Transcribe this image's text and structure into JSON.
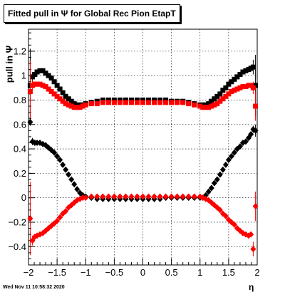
{
  "chart_data": {
    "type": "scatter",
    "title": "Fitted pull in  Ψ  for Global Rec Pion EtapT",
    "xlabel": "η",
    "ylabel": "pull in  Ψ",
    "timestamp": "Wed Nov 11 10:58:32 2020",
    "xlim": [
      -2,
      2
    ],
    "ylim": [
      -0.55,
      1.38
    ],
    "xticks": [
      -2,
      -1.5,
      -1,
      -0.5,
      0,
      0.5,
      1,
      1.5,
      2
    ],
    "xtick_labels": [
      "−2",
      "−1.5",
      "−1",
      "−0.5",
      "0",
      "0.5",
      "1",
      "1.5",
      "2"
    ],
    "yticks": [
      -0.4,
      -0.2,
      0,
      0.2,
      0.4,
      0.6,
      0.8,
      1,
      1.2
    ],
    "ytick_labels": [
      "−0.4",
      "−0.2",
      "0",
      "0.2",
      "0.4",
      "0.6",
      "0.8",
      "1",
      "1.2"
    ],
    "grid": true,
    "series": [
      {
        "marker": "square",
        "color": "#000000",
        "x": [
          -1.97,
          -1.93,
          -1.89,
          -1.85,
          -1.8,
          -1.75,
          -1.7,
          -1.65,
          -1.6,
          -1.55,
          -1.5,
          -1.45,
          -1.4,
          -1.35,
          -1.3,
          -1.25,
          -1.2,
          -1.15,
          -1.1,
          -1.05,
          -1.0,
          -0.9,
          -0.8,
          -0.7,
          -0.6,
          -0.5,
          -0.4,
          -0.3,
          -0.2,
          -0.1,
          0.0,
          0.1,
          0.2,
          0.3,
          0.4,
          0.5,
          0.6,
          0.7,
          0.8,
          0.9,
          1.0,
          1.05,
          1.1,
          1.15,
          1.2,
          1.25,
          1.3,
          1.35,
          1.4,
          1.45,
          1.5,
          1.55,
          1.6,
          1.65,
          1.7,
          1.75,
          1.8,
          1.85,
          1.89,
          1.93,
          1.97
        ],
        "y": [
          0.92,
          0.99,
          1.01,
          1.03,
          1.04,
          1.04,
          1.02,
          1.0,
          0.98,
          0.95,
          0.92,
          0.89,
          0.86,
          0.83,
          0.81,
          0.79,
          0.77,
          0.76,
          0.76,
          0.76,
          0.77,
          0.78,
          0.79,
          0.8,
          0.8,
          0.8,
          0.8,
          0.8,
          0.8,
          0.8,
          0.8,
          0.8,
          0.8,
          0.8,
          0.8,
          0.79,
          0.79,
          0.79,
          0.78,
          0.77,
          0.76,
          0.76,
          0.76,
          0.77,
          0.79,
          0.81,
          0.83,
          0.85,
          0.88,
          0.9,
          0.93,
          0.95,
          0.97,
          0.99,
          1.01,
          1.03,
          1.04,
          1.05,
          1.06,
          1.07,
          0.92
        ],
        "err": [
          0.3,
          0.04,
          0.02,
          0.01,
          0.01,
          0.01,
          0.01,
          0.01,
          0.01,
          0.01,
          0.01,
          0.01,
          0.01,
          0.01,
          0.01,
          0.01,
          0.01,
          0.01,
          0.01,
          0.01,
          0.01,
          0.01,
          0.01,
          0.01,
          0.01,
          0.01,
          0.01,
          0.01,
          0.01,
          0.01,
          0.01,
          0.01,
          0.01,
          0.01,
          0.01,
          0.01,
          0.01,
          0.01,
          0.01,
          0.01,
          0.01,
          0.01,
          0.01,
          0.01,
          0.01,
          0.01,
          0.01,
          0.01,
          0.01,
          0.01,
          0.01,
          0.01,
          0.01,
          0.01,
          0.01,
          0.01,
          0.01,
          0.01,
          0.02,
          0.06,
          0.25
        ]
      },
      {
        "marker": "square",
        "color": "#ff0000",
        "x": [
          -1.97,
          -1.93,
          -1.89,
          -1.85,
          -1.8,
          -1.75,
          -1.7,
          -1.65,
          -1.6,
          -1.55,
          -1.5,
          -1.45,
          -1.4,
          -1.35,
          -1.3,
          -1.25,
          -1.2,
          -1.15,
          -1.1,
          -1.05,
          -1.0,
          -0.9,
          -0.8,
          -0.7,
          -0.6,
          -0.5,
          -0.4,
          -0.3,
          -0.2,
          -0.1,
          0.0,
          0.1,
          0.2,
          0.3,
          0.4,
          0.5,
          0.6,
          0.7,
          0.8,
          0.9,
          1.0,
          1.05,
          1.1,
          1.15,
          1.2,
          1.25,
          1.3,
          1.35,
          1.4,
          1.45,
          1.5,
          1.55,
          1.6,
          1.65,
          1.7,
          1.75,
          1.8,
          1.85,
          1.89,
          1.93,
          1.97
        ],
        "y": [
          0.87,
          0.92,
          0.93,
          0.93,
          0.93,
          0.92,
          0.91,
          0.89,
          0.87,
          0.85,
          0.83,
          0.81,
          0.79,
          0.77,
          0.76,
          0.75,
          0.74,
          0.74,
          0.74,
          0.75,
          0.76,
          0.77,
          0.77,
          0.78,
          0.78,
          0.78,
          0.78,
          0.78,
          0.78,
          0.78,
          0.78,
          0.78,
          0.78,
          0.78,
          0.78,
          0.78,
          0.78,
          0.78,
          0.77,
          0.76,
          0.75,
          0.74,
          0.74,
          0.74,
          0.75,
          0.76,
          0.77,
          0.79,
          0.81,
          0.83,
          0.85,
          0.87,
          0.88,
          0.89,
          0.9,
          0.91,
          0.91,
          0.92,
          0.92,
          0.9,
          0.75
        ],
        "err": [
          0.25,
          0.04,
          0.02,
          0.01,
          0.01,
          0.01,
          0.01,
          0.01,
          0.01,
          0.01,
          0.01,
          0.01,
          0.01,
          0.01,
          0.01,
          0.01,
          0.01,
          0.01,
          0.01,
          0.01,
          0.01,
          0.01,
          0.01,
          0.01,
          0.01,
          0.01,
          0.01,
          0.01,
          0.01,
          0.01,
          0.01,
          0.01,
          0.01,
          0.01,
          0.01,
          0.01,
          0.01,
          0.01,
          0.01,
          0.01,
          0.01,
          0.01,
          0.01,
          0.01,
          0.01,
          0.01,
          0.01,
          0.01,
          0.01,
          0.01,
          0.01,
          0.01,
          0.01,
          0.01,
          0.01,
          0.01,
          0.01,
          0.01,
          0.02,
          0.05,
          0.12
        ]
      },
      {
        "marker": "diamond",
        "color": "#000000",
        "x": [
          -1.97,
          -1.93,
          -1.89,
          -1.85,
          -1.8,
          -1.75,
          -1.7,
          -1.65,
          -1.6,
          -1.55,
          -1.5,
          -1.45,
          -1.4,
          -1.35,
          -1.3,
          -1.25,
          -1.2,
          -1.15,
          -1.1,
          -1.05,
          -1.0,
          -0.9,
          -0.8,
          -0.7,
          -0.6,
          -0.5,
          -0.4,
          -0.3,
          -0.2,
          -0.1,
          0.0,
          0.1,
          0.2,
          0.3,
          0.4,
          0.5,
          0.6,
          0.7,
          0.8,
          0.9,
          1.0,
          1.05,
          1.1,
          1.15,
          1.2,
          1.25,
          1.3,
          1.35,
          1.4,
          1.45,
          1.5,
          1.55,
          1.6,
          1.65,
          1.7,
          1.75,
          1.8,
          1.85,
          1.89,
          1.93,
          1.97
        ],
        "y": [
          0.62,
          0.46,
          0.45,
          0.45,
          0.45,
          0.44,
          0.43,
          0.41,
          0.39,
          0.37,
          0.34,
          0.31,
          0.27,
          0.23,
          0.19,
          0.15,
          0.11,
          0.07,
          0.04,
          0.02,
          0.01,
          0.0,
          -0.01,
          -0.01,
          -0.01,
          -0.01,
          -0.01,
          -0.01,
          -0.01,
          -0.01,
          -0.01,
          -0.01,
          -0.01,
          -0.01,
          0.0,
          0.0,
          0.0,
          0.0,
          0.0,
          0.0,
          0.0,
          0.0,
          0.02,
          0.05,
          0.08,
          0.12,
          0.15,
          0.19,
          0.23,
          0.27,
          0.31,
          0.34,
          0.37,
          0.4,
          0.42,
          0.45,
          0.46,
          0.49,
          0.52,
          0.56,
          0.55
        ],
        "err": [
          0.03,
          0.03,
          0.01,
          0.01,
          0.01,
          0.01,
          0.01,
          0.01,
          0.01,
          0.01,
          0.01,
          0.01,
          0.01,
          0.01,
          0.01,
          0.01,
          0.01,
          0.01,
          0.01,
          0.01,
          0.01,
          0.01,
          0.01,
          0.01,
          0.01,
          0.01,
          0.01,
          0.01,
          0.01,
          0.01,
          0.01,
          0.01,
          0.01,
          0.01,
          0.01,
          0.01,
          0.01,
          0.01,
          0.01,
          0.01,
          0.01,
          0.01,
          0.01,
          0.01,
          0.01,
          0.01,
          0.01,
          0.01,
          0.01,
          0.01,
          0.01,
          0.01,
          0.01,
          0.01,
          0.01,
          0.01,
          0.01,
          0.01,
          0.02,
          0.03,
          0.05
        ]
      },
      {
        "marker": "diamond",
        "color": "#ff0000",
        "x": [
          -1.97,
          -1.93,
          -1.89,
          -1.85,
          -1.8,
          -1.75,
          -1.7,
          -1.65,
          -1.6,
          -1.55,
          -1.5,
          -1.45,
          -1.4,
          -1.35,
          -1.3,
          -1.25,
          -1.2,
          -1.15,
          -1.1,
          -1.05,
          -1.0,
          -0.9,
          -0.8,
          -0.7,
          -0.6,
          -0.5,
          -0.4,
          -0.3,
          -0.2,
          -0.1,
          0.0,
          0.1,
          0.2,
          0.3,
          0.4,
          0.5,
          0.6,
          0.7,
          0.8,
          0.9,
          1.0,
          1.05,
          1.1,
          1.15,
          1.2,
          1.25,
          1.3,
          1.35,
          1.4,
          1.45,
          1.5,
          1.55,
          1.6,
          1.65,
          1.7,
          1.75,
          1.8,
          1.85,
          1.89,
          1.93,
          1.97
        ],
        "y": [
          -0.17,
          -0.35,
          -0.32,
          -0.31,
          -0.3,
          -0.29,
          -0.27,
          -0.25,
          -0.23,
          -0.21,
          -0.19,
          -0.16,
          -0.13,
          -0.11,
          -0.08,
          -0.06,
          -0.04,
          -0.02,
          -0.01,
          0.0,
          0.0,
          0.01,
          0.01,
          0.01,
          0.01,
          0.01,
          0.01,
          0.01,
          0.01,
          0.01,
          0.01,
          0.01,
          0.01,
          0.01,
          0.01,
          0.01,
          0.01,
          0.01,
          0.01,
          0.01,
          0.01,
          0.0,
          -0.01,
          -0.02,
          -0.04,
          -0.06,
          -0.08,
          -0.1,
          -0.13,
          -0.15,
          -0.18,
          -0.2,
          -0.22,
          -0.25,
          -0.27,
          -0.29,
          -0.3,
          -0.31,
          -0.3,
          -0.42,
          -0.07
        ],
        "err": [
          0.3,
          0.04,
          0.02,
          0.01,
          0.01,
          0.01,
          0.01,
          0.01,
          0.01,
          0.01,
          0.01,
          0.01,
          0.01,
          0.01,
          0.01,
          0.01,
          0.01,
          0.01,
          0.01,
          0.01,
          0.01,
          0.01,
          0.01,
          0.01,
          0.01,
          0.01,
          0.01,
          0.01,
          0.01,
          0.01,
          0.01,
          0.01,
          0.01,
          0.01,
          0.01,
          0.01,
          0.01,
          0.01,
          0.01,
          0.01,
          0.01,
          0.01,
          0.01,
          0.01,
          0.01,
          0.01,
          0.01,
          0.01,
          0.01,
          0.01,
          0.01,
          0.01,
          0.01,
          0.01,
          0.01,
          0.01,
          0.01,
          0.02,
          0.02,
          0.06,
          0.12
        ]
      }
    ]
  }
}
